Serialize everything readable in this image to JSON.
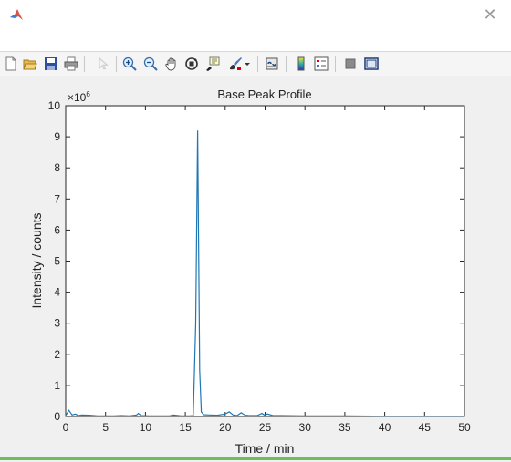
{
  "window": {
    "close_glyph": "✕"
  },
  "toolbar": {
    "buttons": [
      {
        "name": "new-figure-icon"
      },
      {
        "name": "open-file-icon"
      },
      {
        "name": "save-icon"
      },
      {
        "name": "print-icon"
      },
      {
        "name": "pointer-icon"
      },
      {
        "name": "zoom-in-icon"
      },
      {
        "name": "zoom-out-icon"
      },
      {
        "name": "pan-hand-icon"
      },
      {
        "name": "rotate-3d-icon"
      },
      {
        "name": "data-cursor-icon"
      },
      {
        "name": "brush-icon"
      },
      {
        "name": "link-plot-icon"
      },
      {
        "name": "colorbar-icon"
      },
      {
        "name": "legend-icon"
      },
      {
        "name": "hide-plot-tools-icon"
      },
      {
        "name": "show-plot-tools-icon"
      }
    ]
  },
  "chart_data": {
    "type": "line",
    "title": "Base Peak Profile",
    "xlabel": "Time / min",
    "ylabel": "Intensity / counts",
    "y_exponent_label": "×10",
    "y_exponent_power": "6",
    "xlim": [
      0,
      50
    ],
    "ylim": [
      0,
      10
    ],
    "xticks": [
      0,
      5,
      10,
      15,
      20,
      25,
      30,
      35,
      40,
      45,
      50
    ],
    "yticks": [
      0,
      1,
      2,
      3,
      4,
      5,
      6,
      7,
      8,
      9,
      10
    ],
    "line_color": "#1f77b4",
    "x": [
      0,
      0.4,
      0.8,
      1.2,
      1.6,
      2.0,
      3.0,
      4.0,
      5.0,
      6.0,
      7.0,
      8.0,
      8.9,
      9.1,
      9.5,
      10.5,
      12.0,
      13.0,
      13.5,
      14.5,
      15.5,
      16.0,
      16.3,
      16.55,
      16.8,
      17.0,
      17.3,
      18.0,
      19.0,
      20.0,
      20.5,
      21.0,
      21.5,
      22.0,
      22.5,
      23.0,
      24.0,
      24.6,
      24.9,
      25.3,
      26.0,
      27.0,
      30.0,
      35.0,
      40.0,
      45.0,
      50.0
    ],
    "y": [
      0.03,
      0.2,
      0.05,
      0.08,
      0.03,
      0.05,
      0.04,
      0.02,
      0.02,
      0.02,
      0.03,
      0.02,
      0.05,
      0.1,
      0.03,
      0.02,
      0.02,
      0.02,
      0.05,
      0.02,
      0.02,
      0.03,
      3.0,
      9.2,
      1.5,
      0.15,
      0.06,
      0.05,
      0.04,
      0.08,
      0.15,
      0.05,
      0.03,
      0.12,
      0.04,
      0.03,
      0.03,
      0.1,
      0.05,
      0.08,
      0.03,
      0.03,
      0.02,
      0.02,
      0.01,
      0.01,
      0.01
    ]
  }
}
